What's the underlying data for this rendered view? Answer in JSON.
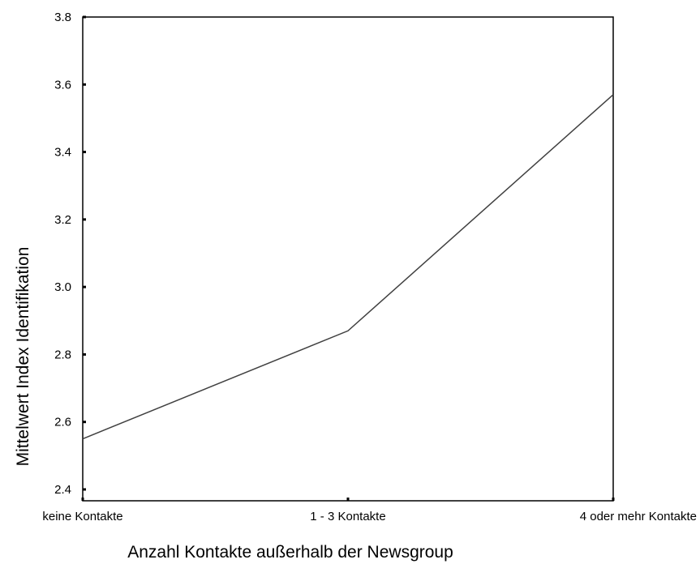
{
  "chart_data": {
    "type": "line",
    "title": "",
    "xlabel": "Anzahl Kontakte außerhalb der Newsgroup",
    "ylabel": "Mittelwert Index Identifikation",
    "categories": [
      "keine Kontakte",
      "1 - 3 Kontakte",
      "4 oder mehr Kontakte"
    ],
    "series": [
      {
        "values": [
          2.55,
          2.87,
          3.57
        ]
      }
    ],
    "ylim": [
      2.4,
      3.8
    ],
    "yticks": [
      "2.4",
      "2.6",
      "2.8",
      "3.0",
      "3.2",
      "3.4",
      "3.6",
      "3.8"
    ],
    "grid": false,
    "line_color": "#404040"
  }
}
